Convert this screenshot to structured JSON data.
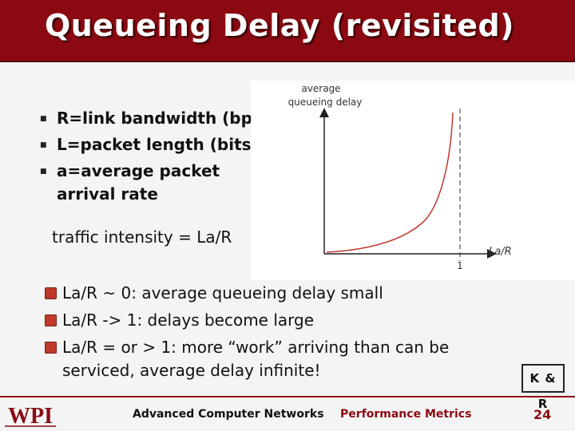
{
  "slide": {
    "title": "Queueing Delay (revisited)"
  },
  "definitions": [
    {
      "text": "R=link bandwidth (bps)"
    },
    {
      "text": "L=packet length (bits)"
    },
    {
      "text": "a=average packet arrival rate"
    }
  ],
  "intensity": "traffic intensity = La/R",
  "graph": {
    "y_label_line1": "average",
    "y_label_line2": "queueing delay",
    "x_label": "La/R",
    "x_tick": "1",
    "curve_color": "#c0392b"
  },
  "points": [
    {
      "text": "La/R ~ 0: average queueing delay small"
    },
    {
      "text": "La/R -> 1: delays become large"
    },
    {
      "text": "La/R = or > 1: more “work” arriving than can be serviced, average delay infinite!"
    }
  ],
  "badge": "K & R",
  "footer": {
    "logo": "WPI",
    "course": "Advanced Computer Networks",
    "topic": "Performance Metrics",
    "page": "24"
  },
  "colors": {
    "brand": "#8b0a12",
    "bullet": "#c0392b"
  }
}
